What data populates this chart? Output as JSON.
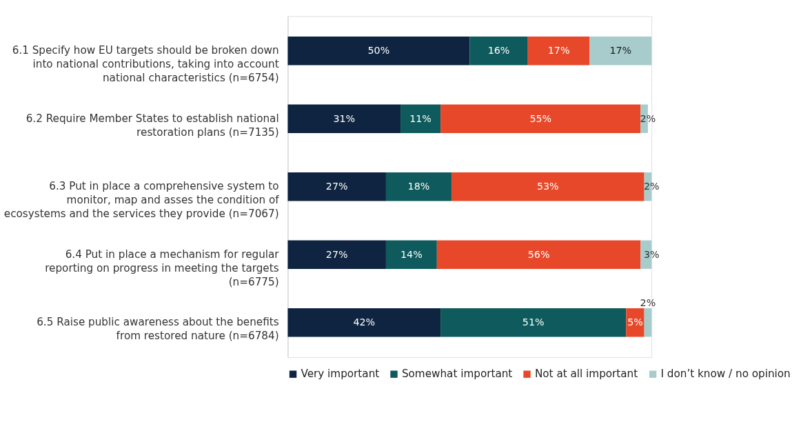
{
  "chart_data": {
    "type": "bar",
    "orientation": "horizontal",
    "stacked": true,
    "legend": "bottom",
    "grid": false,
    "categories": [
      "6.1 Specify how EU targets should be broken down into national contributions, taking into account national characteristics (n=6754)",
      "6.2 Require Member States to establish national restoration plans (n=7135)",
      "6.3 Put in place a comprehensive system to monitor, map and asses the condition of ecosystems and the services they provide (n=7067)",
      "6.4 Put in place a mechanism for regular reporting on progress in meeting the targets (n=6775)",
      "6.5 Raise public awareness about the benefits from restored nature (n=6784)"
    ],
    "series": [
      {
        "name": "Very important",
        "color": "#0f2440",
        "values": [
          50,
          31,
          27,
          27,
          42
        ],
        "value_labels": [
          "50%",
          "31%",
          "27%",
          "27%",
          "42%"
        ]
      },
      {
        "name": "Somewhat important",
        "color": "#0e5a5c",
        "values": [
          16,
          11,
          18,
          14,
          51
        ],
        "value_labels": [
          "16%",
          "11%",
          "18%",
          "14%",
          "51%"
        ]
      },
      {
        "name": "Not at all important",
        "color": "#e8482a",
        "values": [
          17,
          55,
          53,
          56,
          5
        ],
        "value_labels": [
          "17%",
          "55%",
          "53%",
          "56%",
          "5%"
        ]
      },
      {
        "name": "I don’t know / no opinion",
        "color": "#a8cccc",
        "values": [
          17,
          2,
          2,
          3,
          2
        ],
        "value_labels": [
          "17%",
          "2%",
          "2%",
          "3%",
          "2%"
        ]
      }
    ]
  }
}
